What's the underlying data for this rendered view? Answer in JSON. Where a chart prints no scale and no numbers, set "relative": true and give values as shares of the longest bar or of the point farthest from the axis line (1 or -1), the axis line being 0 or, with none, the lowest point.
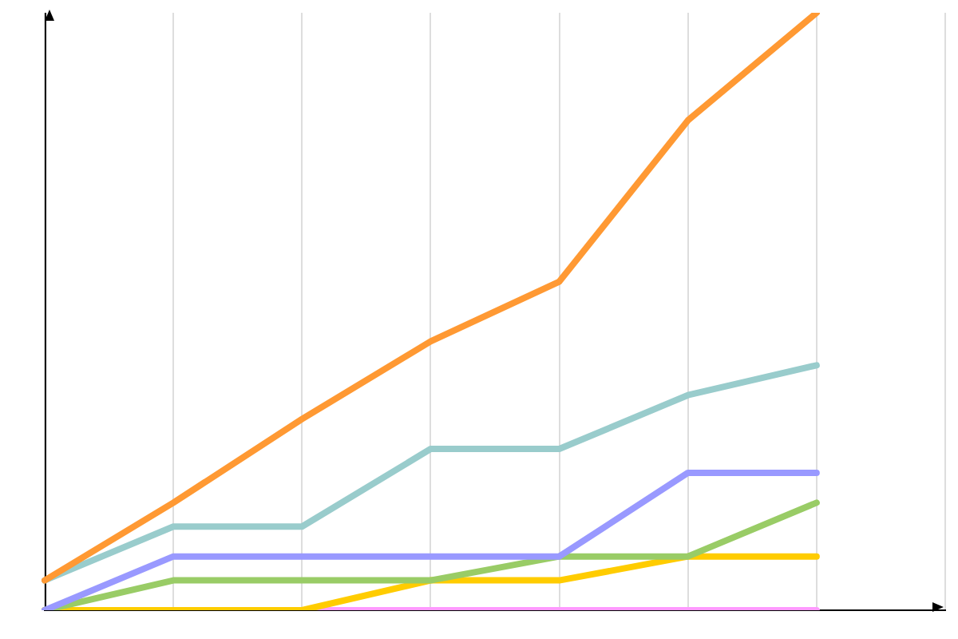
{
  "chart_data": {
    "type": "line",
    "relative": true,
    "categories": [
      null,
      null,
      null,
      null,
      null,
      null,
      null,
      null
    ],
    "series": [
      {
        "color": "#ff9933",
        "values": [
          0.05,
          0.18,
          0.32,
          0.45,
          0.55,
          0.82,
          1,
          null
        ]
      },
      {
        "color": "#99cccc",
        "values": [
          0.05,
          0.14,
          0.14,
          0.27,
          0.27,
          0.36,
          0.41,
          null
        ]
      },
      {
        "color": "#9999ff",
        "values": [
          0,
          0.09,
          0.09,
          0.09,
          0.09,
          0.23,
          0.23,
          null
        ]
      },
      {
        "color": "#99cc66",
        "values": [
          0,
          0.05,
          0.05,
          0.05,
          0.09,
          0.09,
          0.18,
          null
        ]
      },
      {
        "color": "#ffcc00",
        "values": [
          0,
          0,
          0,
          0.05,
          0.05,
          0.09,
          0.09,
          null
        ]
      },
      {
        "color": "#ff99ff",
        "values": [
          0,
          0,
          0,
          0,
          0,
          0,
          0,
          null
        ]
      }
    ],
    "grid": "x",
    "legend": false,
    "marker": "none",
    "line_style": "solid",
    "tick_labels": false
  }
}
